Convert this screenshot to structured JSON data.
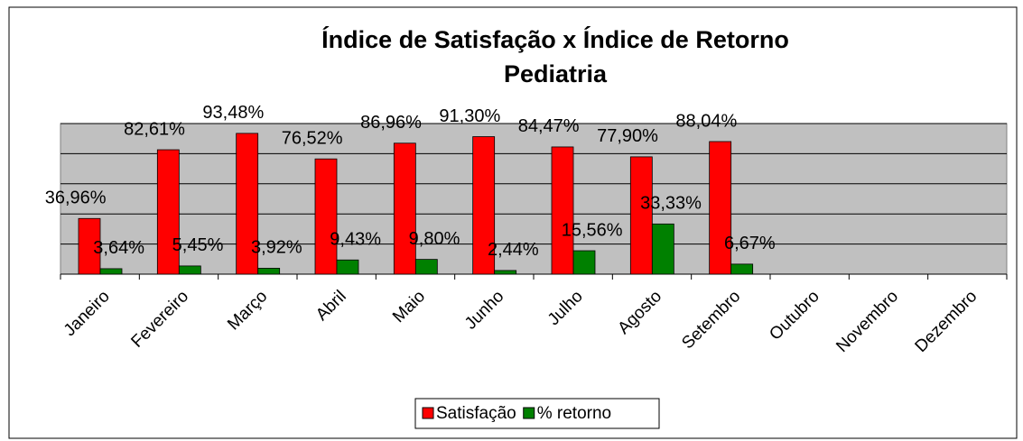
{
  "chart_data": {
    "type": "bar",
    "title": "Índice de Satisfação x Índice de Retorno",
    "subtitle": "Pediatria",
    "categories": [
      "Janeiro",
      "Fevereiro",
      "Março",
      "Abril",
      "Maio",
      "Junho",
      "Julho",
      "Agosto",
      "Setembro",
      "Outubro",
      "Novembro",
      "Dezembro"
    ],
    "series": [
      {
        "name": "Satisfação",
        "color": "#ff0000",
        "values": [
          36.96,
          82.61,
          93.48,
          76.52,
          86.96,
          91.3,
          84.47,
          77.9,
          88.04,
          null,
          null,
          null
        ],
        "value_labels": [
          "36,96%",
          "82,61%",
          "93,48%",
          "76,52%",
          "86,96%",
          "91,30%",
          "84,47%",
          "77,90%",
          "88,04%",
          null,
          null,
          null
        ]
      },
      {
        "name": "% retorno",
        "color": "#008000",
        "values": [
          3.64,
          5.45,
          3.92,
          9.43,
          9.8,
          2.44,
          15.56,
          33.33,
          6.67,
          null,
          null,
          null
        ],
        "value_labels": [
          "3,64%",
          "5,45%",
          "3,92%",
          "9,43%",
          "9,80%",
          "2,44%",
          "15,56%",
          "33,33%",
          "6,67%",
          null,
          null,
          null
        ]
      }
    ],
    "ylim": [
      0,
      100
    ],
    "yticks": [
      0,
      20,
      40,
      60,
      80,
      100
    ],
    "grid": true,
    "legend": "bottom"
  }
}
